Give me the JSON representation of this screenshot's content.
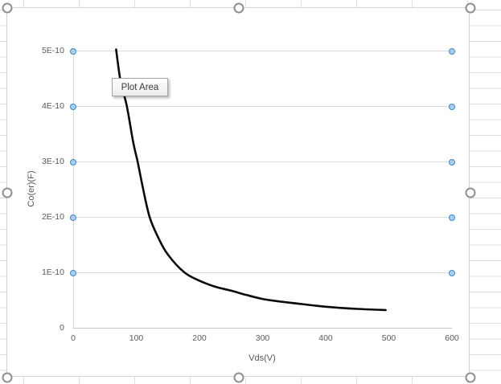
{
  "tooltip": {
    "label": "Plot Area"
  },
  "axes": {
    "x": {
      "title": "Vds(V)",
      "ticks": [
        "0",
        "100",
        "200",
        "300",
        "400",
        "500",
        "600"
      ]
    },
    "y": {
      "title": "Co(er)(F)",
      "ticks": [
        "0",
        "1E-10",
        "2E-10",
        "3E-10",
        "4E-10",
        "5E-10"
      ]
    }
  },
  "colors": {
    "series": "#0b0b0b",
    "gridline": "#d9dbdd",
    "axis_line": "#c6c9cc",
    "label_text": "#595959",
    "sheet_gridline": "#dbdde0",
    "selection_dot_ring": "#3f87c5",
    "selection_dot_fill": "#a9cef0"
  },
  "selection": {
    "handles": 8,
    "gridlines_with_end_dots": 5
  },
  "chart_data": {
    "type": "line",
    "title": "",
    "xlabel": "Vds(V)",
    "ylabel": "Co(er)(F)",
    "xlim": [
      0,
      600
    ],
    "ylim": [
      0,
      5e-10
    ],
    "x_ticks": [
      0,
      100,
      200,
      300,
      400,
      500,
      600
    ],
    "y_ticks": [
      0,
      1e-10,
      2e-10,
      3e-10,
      4e-10,
      5e-10
    ],
    "grid": "horizontal-major",
    "legend": "none",
    "series": [
      {
        "name": "Co(er)",
        "x": [
          68,
          75,
          85,
          95,
          102,
          110,
          121,
          135,
          150,
          176,
          200,
          225,
          250,
          275,
          300,
          330,
          360,
          400,
          450,
          495
        ],
        "y": [
          5.02e-10,
          4.45e-10,
          4e-10,
          3.35e-10,
          3e-10,
          2.55e-10,
          2e-10,
          1.62e-10,
          1.32e-10,
          1e-10,
          8.5e-11,
          7.4e-11,
          6.7e-11,
          5.9e-11,
          5.2e-11,
          4.7e-11,
          4.3e-11,
          3.8e-11,
          3.4e-11,
          3.2e-11
        ]
      }
    ]
  }
}
